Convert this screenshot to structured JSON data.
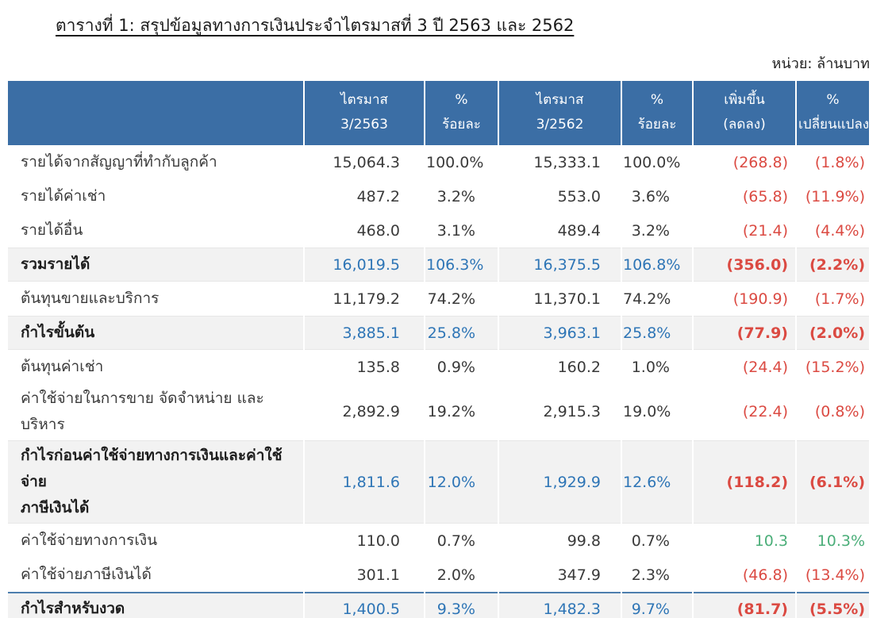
{
  "title": "ตารางที่ 1: สรุปข้อมูลทางการเงินประจำไตรมาสที่ 3 ปี 2563 และ 2562",
  "unit_label": "หน่วย: ล้านบาท",
  "colors": {
    "header_bg": "#3B6EA5",
    "accent_blue": "#2E75B6",
    "negative_red": "#DB4A42",
    "positive_green": "#4BAE79",
    "total_row_bg": "#F2F2F2",
    "line_blue": "#4D7EAE"
  },
  "table": {
    "columns": [
      {
        "line1": "ไตรมาส",
        "line2": "3/2563"
      },
      {
        "line1": "%",
        "line2": "ร้อยละ"
      },
      {
        "line1": "ไตรมาส",
        "line2": "3/2562"
      },
      {
        "line1": "%",
        "line2": "ร้อยละ"
      },
      {
        "line1": "เพิ่มขึ้น",
        "line2": "(ลดลง)"
      },
      {
        "line1": "%",
        "line2": "เปลี่ยนแปลง"
      }
    ],
    "rows": [
      {
        "label": "รายได้จากสัญญาที่ทำกับลูกค้า",
        "values": [
          "15,064.3",
          "100.0%",
          "15,333.1",
          "100.0%"
        ],
        "change": "(268.8)",
        "change_pct": "(1.8%)",
        "type": "normal",
        "change_color": "red"
      },
      {
        "label": "รายได้ค่าเช่า",
        "values": [
          "487.2",
          "3.2%",
          "553.0",
          "3.6%"
        ],
        "change": "(65.8)",
        "change_pct": "(11.9%)",
        "type": "normal",
        "change_color": "red"
      },
      {
        "label": "รายได้อื่น",
        "values": [
          "468.0",
          "3.1%",
          "489.4",
          "3.2%"
        ],
        "change": "(21.4)",
        "change_pct": "(4.4%)",
        "type": "normal",
        "change_color": "red"
      },
      {
        "label": "รวมรายได้",
        "values": [
          "16,019.5",
          "106.3%",
          "16,375.5",
          "106.8%"
        ],
        "change": "(356.0)",
        "change_pct": "(2.2%)",
        "type": "total",
        "change_color": "red"
      },
      {
        "label": "ต้นทุนขายและบริการ",
        "values": [
          "11,179.2",
          "74.2%",
          "11,370.1",
          "74.2%"
        ],
        "change": "(190.9)",
        "change_pct": "(1.7%)",
        "type": "normal",
        "change_color": "red"
      },
      {
        "label": "กำไรขั้นต้น",
        "values": [
          "3,885.1",
          "25.8%",
          "3,963.1",
          "25.8%"
        ],
        "change": "(77.9)",
        "change_pct": "(2.0%)",
        "type": "total",
        "change_color": "red"
      },
      {
        "label": "ต้นทุนค่าเช่า",
        "values": [
          "135.8",
          "0.9%",
          "160.2",
          "1.0%"
        ],
        "change": "(24.4)",
        "change_pct": "(15.2%)",
        "type": "normal",
        "change_color": "red"
      },
      {
        "label": "ค่าใช้จ่ายในการขาย จัดจำหน่าย และบริหาร",
        "values": [
          "2,892.9",
          "19.2%",
          "2,915.3",
          "19.0%"
        ],
        "change": "(22.4)",
        "change_pct": "(0.8%)",
        "type": "normal",
        "change_color": "red"
      },
      {
        "label": "กำไรก่อนค่าใช้จ่ายทางการเงินและค่าใช้จ่าย\nภาษีเงินได้",
        "values": [
          "1,811.6",
          "12.0%",
          "1,929.9",
          "12.6%"
        ],
        "change": "(118.2)",
        "change_pct": "(6.1%)",
        "type": "total",
        "change_color": "red"
      },
      {
        "label": "ค่าใช้จ่ายทางการเงิน",
        "values": [
          "110.0",
          "0.7%",
          "99.8",
          "0.7%"
        ],
        "change": "10.3",
        "change_pct": "10.3%",
        "type": "normal",
        "change_color": "green"
      },
      {
        "label": "ค่าใช้จ่ายภาษีเงินได้",
        "values": [
          "301.1",
          "2.0%",
          "347.9",
          "2.3%"
        ],
        "change": "(46.8)",
        "change_pct": "(13.4%)",
        "type": "normal",
        "change_color": "red"
      },
      {
        "label": "กำไรสำหรับงวด",
        "values": [
          "1,400.5",
          "9.3%",
          "1,482.3",
          "9.7%"
        ],
        "change": "(81.7)",
        "change_pct": "(5.5%)",
        "type": "grand",
        "change_color": "red"
      }
    ]
  }
}
